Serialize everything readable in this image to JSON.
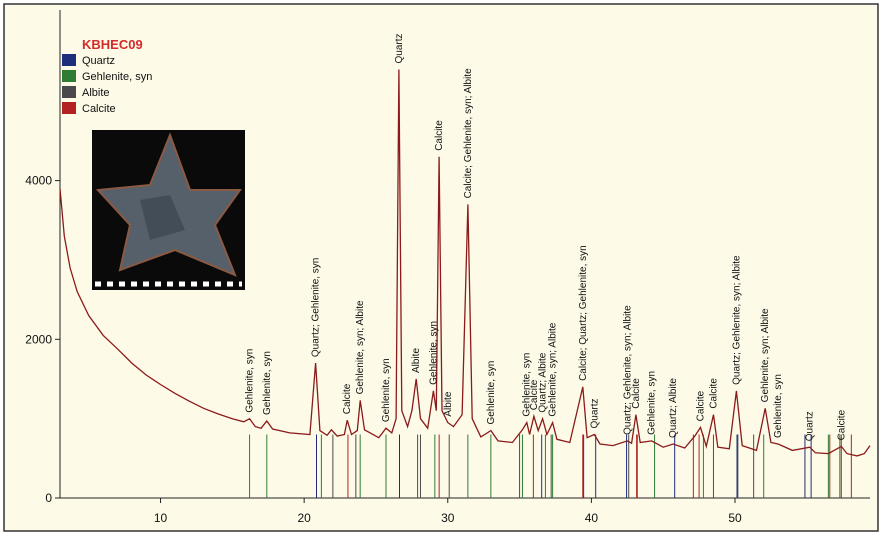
{
  "chart_data": {
    "type": "line",
    "title": "KBHEC09",
    "color": "#8b1a1a",
    "xlim": [
      3,
      59.4
    ],
    "ylim": [
      0,
      6150
    ],
    "xticks": [
      10,
      20,
      30,
      40,
      50
    ],
    "yticks": [
      0,
      2000,
      4000
    ],
    "x": [
      3.0,
      3.3,
      3.7,
      4.2,
      5,
      6,
      7,
      8,
      9,
      10,
      11,
      12,
      13,
      14,
      15,
      15.8,
      16.2,
      16.6,
      17.0,
      17.4,
      17.8,
      19,
      20.4,
      20.8,
      21.1,
      21.6,
      21.9,
      22.3,
      22.8,
      23.0,
      23.3,
      23.7,
      23.9,
      24.2,
      25.2,
      25.7,
      26.1,
      26.4,
      26.6,
      26.8,
      27.2,
      27.5,
      27.8,
      28.1,
      28.6,
      29.0,
      29.2,
      29.4,
      29.6,
      30.0,
      30.4,
      31.0,
      31.4,
      31.7,
      32.3,
      33.0,
      33.5,
      34.5,
      35.2,
      35.5,
      35.7,
      36.0,
      36.3,
      36.6,
      36.9,
      37.3,
      37.6,
      38.5,
      39.4,
      39.7,
      40.2,
      40.6,
      41.5,
      42.5,
      42.8,
      43.1,
      43.4,
      44.2,
      45,
      45.7,
      46.5,
      47.2,
      47.6,
      48.0,
      48.5,
      48.8,
      49.6,
      50.1,
      50.5,
      51.5,
      52.1,
      52.5,
      53.0,
      54,
      55.2,
      55.6,
      56.5,
      57.4,
      57.8,
      58.5,
      59,
      59.4
    ],
    "values": [
      3900,
      3300,
      2900,
      2600,
      2300,
      2050,
      1880,
      1700,
      1550,
      1430,
      1320,
      1220,
      1130,
      1060,
      1000,
      960,
      1000,
      900,
      880,
      970,
      870,
      820,
      800,
      1700,
      850,
      790,
      860,
      780,
      800,
      980,
      800,
      850,
      1230,
      860,
      760,
      880,
      820,
      1000,
      5400,
      1100,
      900,
      1100,
      1500,
      1000,
      880,
      1350,
      1100,
      4300,
      1100,
      950,
      900,
      1050,
      3700,
      1000,
      770,
      850,
      720,
      700,
      860,
      950,
      800,
      1030,
      850,
      1000,
      800,
      950,
      740,
      700,
      1400,
      760,
      800,
      680,
      660,
      720,
      690,
      1050,
      700,
      720,
      640,
      680,
      630,
      780,
      890,
      650,
      1050,
      640,
      620,
      1350,
      660,
      600,
      1130,
      700,
      680,
      600,
      640,
      570,
      560,
      650,
      560,
      530,
      560,
      660
    ],
    "phases": [
      {
        "name": "Quartz",
        "color": "#1f2e7a",
        "peaks": [
          20.86,
          26.64,
          36.54,
          39.46,
          40.3,
          42.45,
          45.8,
          50.14,
          54.87,
          55.3
        ]
      },
      {
        "name": "Gehlenite, syn",
        "color": "#2e7d32",
        "peaks": [
          16.2,
          17.4,
          21.2,
          23.9,
          25.7,
          29.1,
          31.4,
          33.0,
          35.2,
          36.8,
          37.3,
          43.2,
          44.4,
          47.8,
          52.0,
          56.5,
          57.3
        ]
      },
      {
        "name": "Albite",
        "color": "#4a4a4a",
        "peaks": [
          22.0,
          23.6,
          27.9,
          28.1,
          30.1,
          35.0,
          37.2,
          42.6,
          50.2,
          51.3
        ]
      },
      {
        "name": "Calcite",
        "color": "#b22222",
        "peaks": [
          23.05,
          29.4,
          35.96,
          39.4,
          43.15,
          47.1,
          47.5,
          48.5,
          56.6,
          57.4,
          58.1
        ]
      }
    ],
    "annotations": [
      {
        "text": "Gehlenite, syn",
        "x": 16.2,
        "y": 1000
      },
      {
        "text": "Gehlenite, syn",
        "x": 17.4,
        "y": 970
      },
      {
        "text": "Quartz; Gehlenite, syn",
        "x": 20.8,
        "y": 1700
      },
      {
        "text": "Calcite",
        "x": 23.0,
        "y": 980
      },
      {
        "text": "Gehlenite, syn; Albite",
        "x": 23.9,
        "y": 1230
      },
      {
        "text": "Gehlenite, syn",
        "x": 25.7,
        "y": 880
      },
      {
        "text": "Quartz",
        "x": 26.6,
        "y": 5400
      },
      {
        "text": "Albite",
        "x": 27.8,
        "y": 1500
      },
      {
        "text": "Gehlenite, syn",
        "x": 29.0,
        "y": 1350
      },
      {
        "text": "Calcite",
        "x": 29.4,
        "y": 4300
      },
      {
        "text": "Albite",
        "x": 30.0,
        "y": 950
      },
      {
        "text": "Calcite; Gehlenite, syn; Albite",
        "x": 31.4,
        "y": 3700
      },
      {
        "text": "Gehlenite, syn",
        "x": 33.0,
        "y": 850
      },
      {
        "text": "Gehlenite, syn",
        "x": 35.5,
        "y": 950
      },
      {
        "text": "Calcite",
        "x": 36.0,
        "y": 1030
      },
      {
        "text": "Quartz; Albite",
        "x": 36.6,
        "y": 1000
      },
      {
        "text": "Gehlenite, syn; Albite",
        "x": 37.3,
        "y": 950
      },
      {
        "text": "Calcite; Quartz; Gehlenite, syn",
        "x": 39.4,
        "y": 1400
      },
      {
        "text": "Quartz",
        "x": 40.2,
        "y": 800
      },
      {
        "text": "Quartz; Gehlenite, syn; Albite",
        "x": 42.5,
        "y": 720
      },
      {
        "text": "Calcite",
        "x": 43.1,
        "y": 1050
      },
      {
        "text": "Gehlenite, syn",
        "x": 44.2,
        "y": 720
      },
      {
        "text": "Quartz; Albite",
        "x": 45.7,
        "y": 680
      },
      {
        "text": "Calcite",
        "x": 47.6,
        "y": 890
      },
      {
        "text": "Calcite",
        "x": 48.5,
        "y": 1050
      },
      {
        "text": "Quartz; Gehlenite, syn; Albite",
        "x": 50.1,
        "y": 1350
      },
      {
        "text": "Gehlenite, syn; Albite",
        "x": 52.1,
        "y": 1130
      },
      {
        "text": "Gehlenite, syn",
        "x": 53.0,
        "y": 680
      },
      {
        "text": "Quartz",
        "x": 55.2,
        "y": 640
      },
      {
        "text": "Calcite",
        "x": 57.4,
        "y": 650
      }
    ]
  }
}
